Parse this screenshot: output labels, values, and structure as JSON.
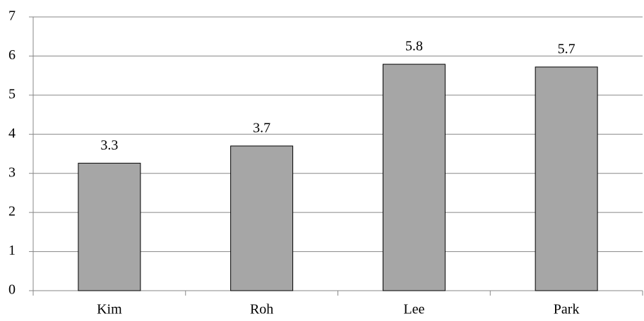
{
  "chart_data": {
    "type": "bar",
    "categories": [
      "Kim",
      "Roh",
      "Lee",
      "Park"
    ],
    "values": [
      3.26,
      3.7,
      5.79,
      5.72
    ],
    "value_labels": [
      "3.3",
      "3.7",
      "5.8",
      "5.7"
    ],
    "color": "#a6a6a6",
    "ylim": [
      0,
      7
    ],
    "yticks": [
      0,
      1,
      2,
      3,
      4,
      5,
      6,
      7
    ],
    "grid": true
  }
}
